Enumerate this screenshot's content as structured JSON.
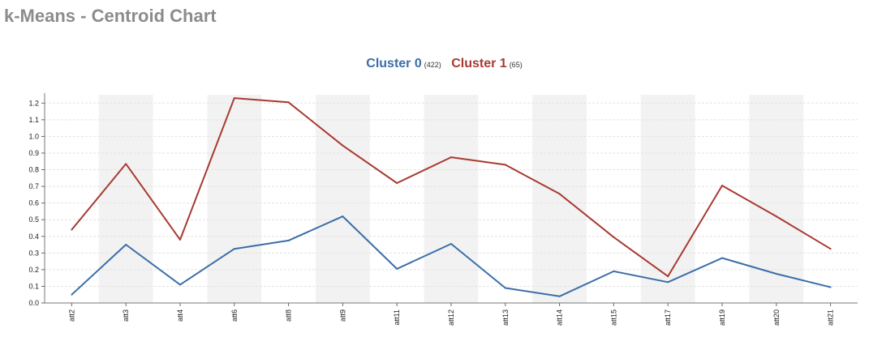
{
  "page": {
    "title": "k-Means - Centroid Chart"
  },
  "chart_data": {
    "type": "line",
    "categories": [
      "att2",
      "att3",
      "att4",
      "att6",
      "att8",
      "att9",
      "att11",
      "att12",
      "att13",
      "att14",
      "att15",
      "att17",
      "att19",
      "att20",
      "att21"
    ],
    "series": [
      {
        "name": "Cluster 0",
        "count_label": "(422)",
        "color": "#3b6ea8",
        "values": [
          0.05,
          0.35,
          0.11,
          0.325,
          0.375,
          0.52,
          0.205,
          0.355,
          0.09,
          0.04,
          0.19,
          0.125,
          0.27,
          0.175,
          0.095
        ]
      },
      {
        "name": "Cluster 1",
        "count_label": "(65)",
        "color": "#a83a32",
        "values": [
          0.44,
          0.835,
          0.38,
          1.23,
          1.205,
          0.945,
          0.72,
          0.875,
          0.83,
          0.655,
          0.395,
          0.16,
          0.705,
          0.52,
          0.325
        ]
      }
    ],
    "ylim": [
      0,
      1.25
    ],
    "yticks": [
      0.0,
      0.1,
      0.2,
      0.3,
      0.4,
      0.5,
      0.6,
      0.7,
      0.8,
      0.9,
      1.0,
      1.1,
      1.2
    ],
    "grid": true,
    "legend": "top-center",
    "band_color": "#f2f2f2",
    "grid_color": "#e3e3e3"
  }
}
